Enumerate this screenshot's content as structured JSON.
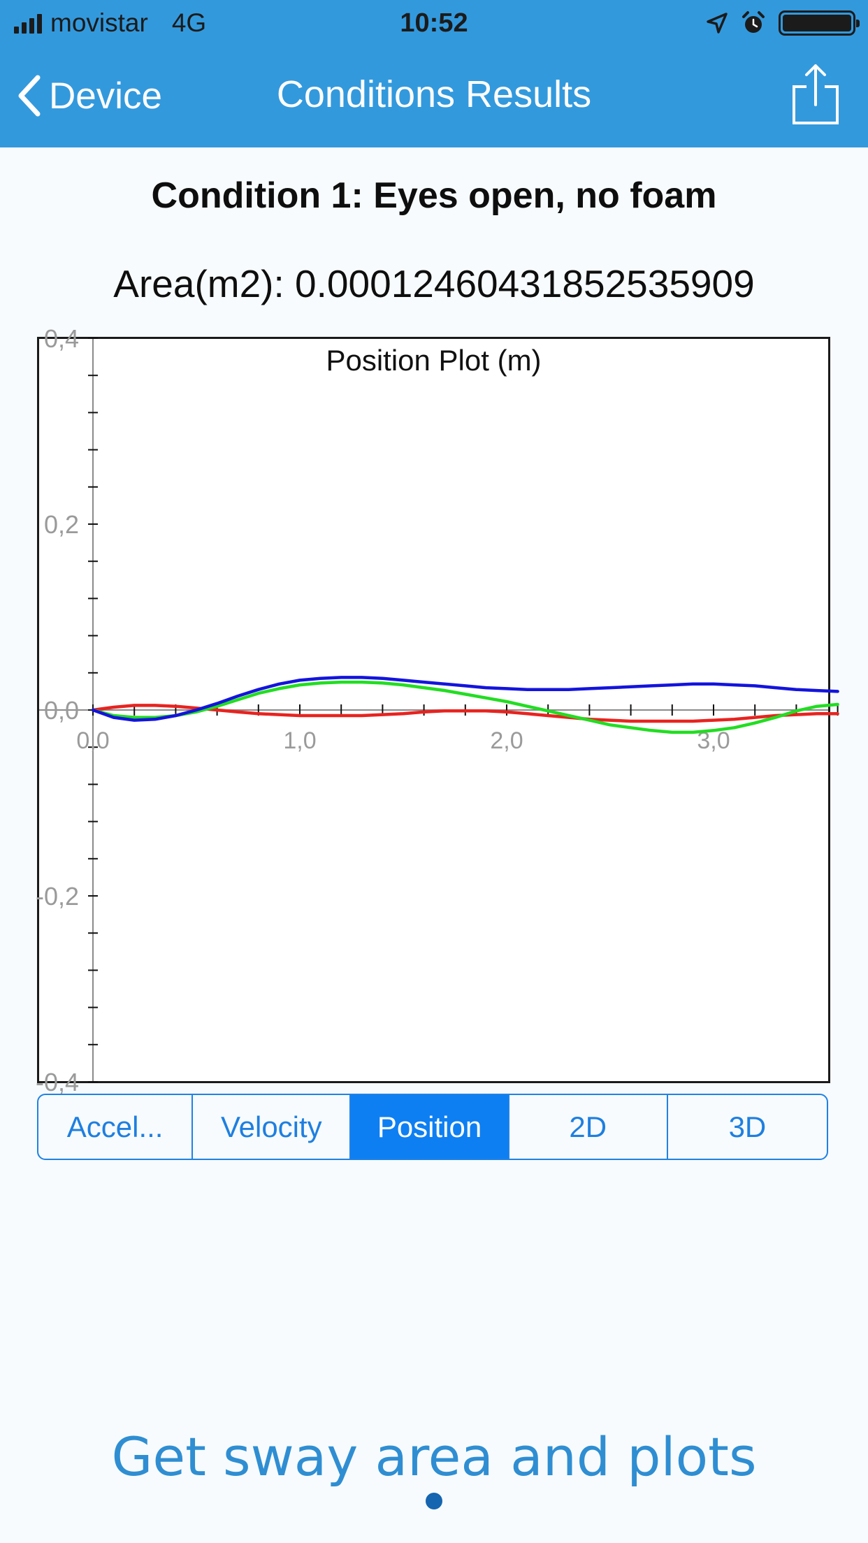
{
  "status_bar": {
    "carrier": "movistar",
    "network": "4G",
    "time": "10:52"
  },
  "nav": {
    "back_label": "Device",
    "title": "Conditions Results"
  },
  "condition_title": "Condition 1: Eyes open, no foam",
  "area_text": "Area(m2): 0.000124604318525359​09",
  "segments": [
    {
      "label": "Accel...",
      "selected": false
    },
    {
      "label": "Velocity",
      "selected": false
    },
    {
      "label": "Position",
      "selected": true
    },
    {
      "label": "2D",
      "selected": false
    },
    {
      "label": "3D",
      "selected": false
    }
  ],
  "promo_text": "Get sway area and plots",
  "colors": {
    "header": "#3399dd",
    "segment_accent": "#0d7ff2",
    "series_red": "#e8231f",
    "series_green": "#22dd22",
    "series_blue": "#1414dd"
  },
  "chart_data": {
    "type": "line",
    "title": "Position Plot (m)",
    "xlabel": "",
    "ylabel": "",
    "xlim": [
      0,
      3.6
    ],
    "ylim": [
      -0.4,
      0.4
    ],
    "x_ticks": [
      "0,0",
      "1,0",
      "2,0",
      "3,0"
    ],
    "y_ticks": [
      "0,4",
      "0,2",
      "0,0",
      "-0,2",
      "-0,4"
    ],
    "grid": false,
    "series": [
      {
        "color": "#e8231f",
        "x": [
          0,
          0.1,
          0.2,
          0.3,
          0.4,
          0.5,
          0.6,
          0.7,
          0.8,
          0.9,
          1.0,
          1.1,
          1.2,
          1.3,
          1.4,
          1.5,
          1.6,
          1.7,
          1.8,
          1.9,
          2.0,
          2.1,
          2.2,
          2.3,
          2.4,
          2.5,
          2.6,
          2.7,
          2.8,
          2.9,
          3.0,
          3.1,
          3.2,
          3.3,
          3.4,
          3.5,
          3.6
        ],
        "y": [
          0,
          0.003,
          0.005,
          0.005,
          0.004,
          0.002,
          0,
          -0.002,
          -0.004,
          -0.005,
          -0.006,
          -0.006,
          -0.006,
          -0.006,
          -0.005,
          -0.004,
          -0.002,
          -0.001,
          -0.001,
          -0.001,
          -0.002,
          -0.004,
          -0.006,
          -0.008,
          -0.01,
          -0.011,
          -0.012,
          -0.012,
          -0.012,
          -0.012,
          -0.011,
          -0.01,
          -0.008,
          -0.006,
          -0.005,
          -0.004,
          -0.004
        ]
      },
      {
        "color": "#22dd22",
        "x": [
          0,
          0.1,
          0.2,
          0.3,
          0.4,
          0.5,
          0.6,
          0.7,
          0.8,
          0.9,
          1.0,
          1.1,
          1.2,
          1.3,
          1.4,
          1.5,
          1.6,
          1.7,
          1.8,
          1.9,
          2.0,
          2.1,
          2.2,
          2.3,
          2.4,
          2.5,
          2.6,
          2.7,
          2.8,
          2.9,
          3.0,
          3.1,
          3.2,
          3.3,
          3.4,
          3.5,
          3.6
        ],
        "y": [
          0,
          -0.006,
          -0.008,
          -0.008,
          -0.006,
          -0.002,
          0.004,
          0.011,
          0.018,
          0.023,
          0.027,
          0.029,
          0.03,
          0.03,
          0.029,
          0.027,
          0.024,
          0.021,
          0.017,
          0.013,
          0.009,
          0.004,
          -0.001,
          -0.006,
          -0.011,
          -0.016,
          -0.019,
          -0.022,
          -0.024,
          -0.024,
          -0.022,
          -0.019,
          -0.014,
          -0.008,
          -0.001,
          0.004,
          0.006
        ]
      },
      {
        "color": "#1414dd",
        "x": [
          0,
          0.1,
          0.2,
          0.3,
          0.4,
          0.5,
          0.6,
          0.7,
          0.8,
          0.9,
          1.0,
          1.1,
          1.2,
          1.3,
          1.4,
          1.5,
          1.6,
          1.7,
          1.8,
          1.9,
          2.0,
          2.1,
          2.2,
          2.3,
          2.4,
          2.5,
          2.6,
          2.7,
          2.8,
          2.9,
          3.0,
          3.1,
          3.2,
          3.3,
          3.4,
          3.5,
          3.6
        ],
        "y": [
          0,
          -0.008,
          -0.011,
          -0.01,
          -0.006,
          0.0,
          0.007,
          0.015,
          0.022,
          0.028,
          0.032,
          0.034,
          0.035,
          0.035,
          0.034,
          0.032,
          0.03,
          0.028,
          0.026,
          0.024,
          0.023,
          0.022,
          0.022,
          0.022,
          0.023,
          0.024,
          0.025,
          0.026,
          0.027,
          0.028,
          0.028,
          0.027,
          0.026,
          0.024,
          0.022,
          0.021,
          0.02
        ]
      }
    ]
  }
}
